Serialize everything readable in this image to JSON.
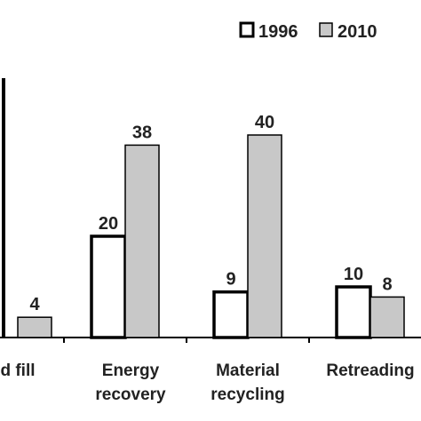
{
  "chart_data": {
    "type": "bar",
    "categories": [
      {
        "lines": [
          "d fill"
        ],
        "full": "Land fill"
      },
      {
        "lines": [
          "Energy",
          "recovery"
        ],
        "full": "Energy recovery"
      },
      {
        "lines": [
          "Material",
          "recycling"
        ],
        "full": "Material recycling"
      },
      {
        "lines": [
          "Retreading"
        ],
        "full": "Retreading"
      }
    ],
    "series": [
      {
        "name": "1996",
        "values": [
          null,
          20,
          9,
          10
        ],
        "color": "#ffffff",
        "stroke": "#000000"
      },
      {
        "name": "2010",
        "values": [
          4,
          38,
          40,
          8
        ],
        "color": "#c8c8c8",
        "stroke": "#000000"
      }
    ],
    "data_labels": [
      [
        null,
        "20",
        "9",
        "10"
      ],
      [
        "4",
        "38",
        "40",
        "8"
      ]
    ],
    "ylim": [
      0,
      48
    ],
    "grid": false,
    "legend_position": "top-right",
    "title": "",
    "xlabel": "",
    "ylabel": ""
  }
}
